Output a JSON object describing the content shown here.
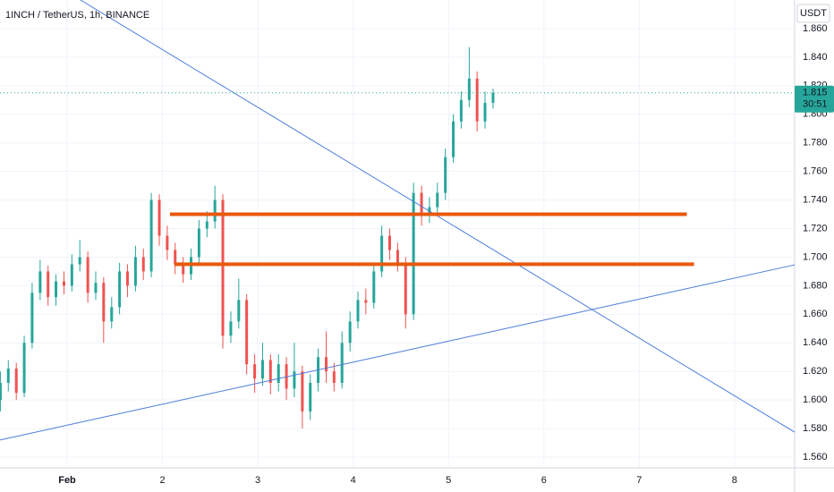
{
  "chart_data": {
    "type": "candlestick",
    "title": "1INCH / TetherUS, 1h, BINANCE",
    "axis_unit": "USDT",
    "up_color": "#26a69a",
    "down_color": "#ef5350",
    "x": [
      0.3,
      0.383,
      0.467,
      0.55,
      0.633,
      0.717,
      0.8,
      0.883,
      0.967,
      1.05,
      1.133,
      1.217,
      1.3,
      1.383,
      1.467,
      1.55,
      1.633,
      1.717,
      1.8,
      1.883,
      1.967,
      2.05,
      2.133,
      2.217,
      2.3,
      2.383,
      2.467,
      2.55,
      2.633,
      2.717,
      2.8,
      2.883,
      2.967,
      3.05,
      3.133,
      3.217,
      3.3,
      3.383,
      3.467,
      3.55,
      3.633,
      3.717,
      3.8,
      3.883,
      3.967,
      4.05,
      4.133,
      4.217,
      4.3,
      4.383,
      4.467,
      4.55,
      4.633,
      4.717,
      4.8,
      4.883,
      4.967,
      5.05,
      5.133,
      5.217,
      5.3,
      5.383,
      5.467
    ],
    "open": [
      1.6,
      1.612,
      1.622,
      1.605,
      1.64,
      1.675,
      1.69,
      1.672,
      1.683,
      1.68,
      1.695,
      1.7,
      1.675,
      1.682,
      1.655,
      1.665,
      1.69,
      1.68,
      1.7,
      1.69,
      1.74,
      1.715,
      1.705,
      1.695,
      1.688,
      1.7,
      1.72,
      1.725,
      1.74,
      1.645,
      1.655,
      1.67,
      1.625,
      1.615,
      1.628,
      1.612,
      1.625,
      1.608,
      1.62,
      1.592,
      1.612,
      1.63,
      1.62,
      1.612,
      1.64,
      1.655,
      1.67,
      1.668,
      1.69,
      1.715,
      1.705,
      1.695,
      1.66,
      1.745,
      1.73,
      1.735,
      1.745,
      1.77,
      1.795,
      1.81,
      1.825,
      1.795,
      1.808
    ],
    "high": [
      1.62,
      1.628,
      1.626,
      1.645,
      1.682,
      1.698,
      1.694,
      1.688,
      1.69,
      1.702,
      1.712,
      1.704,
      1.69,
      1.686,
      1.672,
      1.696,
      1.695,
      1.708,
      1.706,
      1.745,
      1.744,
      1.722,
      1.71,
      1.7,
      1.706,
      1.726,
      1.732,
      1.75,
      1.744,
      1.662,
      1.685,
      1.674,
      1.632,
      1.64,
      1.632,
      1.632,
      1.63,
      1.64,
      1.624,
      1.618,
      1.636,
      1.648,
      1.626,
      1.648,
      1.662,
      1.676,
      1.678,
      1.696,
      1.722,
      1.72,
      1.71,
      1.7,
      1.752,
      1.75,
      1.742,
      1.752,
      1.776,
      1.8,
      1.816,
      1.847,
      1.83,
      1.816,
      1.818
    ],
    "low": [
      1.592,
      1.606,
      1.6,
      1.602,
      1.636,
      1.67,
      1.666,
      1.666,
      1.674,
      1.676,
      1.69,
      1.668,
      1.67,
      1.64,
      1.65,
      1.66,
      1.672,
      1.676,
      1.684,
      1.686,
      1.708,
      1.698,
      1.688,
      1.682,
      1.684,
      1.696,
      1.714,
      1.72,
      1.636,
      1.64,
      1.65,
      1.618,
      1.605,
      1.61,
      1.604,
      1.606,
      1.6,
      1.602,
      1.58,
      1.586,
      1.606,
      1.612,
      1.606,
      1.608,
      1.634,
      1.65,
      1.66,
      1.664,
      1.686,
      1.698,
      1.69,
      1.65,
      1.656,
      1.722,
      1.724,
      1.73,
      1.74,
      1.766,
      1.79,
      1.805,
      1.788,
      1.79,
      1.804
    ],
    "close": [
      1.612,
      1.622,
      1.605,
      1.64,
      1.675,
      1.69,
      1.672,
      1.683,
      1.68,
      1.695,
      1.7,
      1.675,
      1.682,
      1.655,
      1.665,
      1.69,
      1.68,
      1.7,
      1.69,
      1.74,
      1.715,
      1.705,
      1.695,
      1.688,
      1.7,
      1.72,
      1.725,
      1.74,
      1.645,
      1.655,
      1.67,
      1.625,
      1.615,
      1.628,
      1.612,
      1.625,
      1.608,
      1.62,
      1.592,
      1.612,
      1.63,
      1.62,
      1.612,
      1.64,
      1.655,
      1.67,
      1.668,
      1.69,
      1.715,
      1.705,
      1.695,
      1.66,
      1.745,
      1.73,
      1.735,
      1.745,
      1.77,
      1.795,
      1.81,
      1.825,
      1.795,
      1.808,
      1.815
    ],
    "xlim": [
      0.296,
      8.63
    ],
    "ylim": [
      1.5525,
      1.88
    ],
    "xticks": [
      {
        "value": 1,
        "label": "Feb"
      },
      2,
      3,
      4,
      5,
      6,
      7,
      8
    ],
    "yticks": [
      {
        "value": 1.56,
        "label": "1.560"
      },
      {
        "value": 1.58,
        "label": "1.580"
      },
      {
        "value": 1.6,
        "label": "1.600"
      },
      {
        "value": 1.62,
        "label": "1.620"
      },
      {
        "value": 1.64,
        "label": "1.640"
      },
      {
        "value": 1.66,
        "label": "1.660"
      },
      {
        "value": 1.68,
        "label": "1.680"
      },
      {
        "value": 1.7,
        "label": "1.700"
      },
      {
        "value": 1.72,
        "label": "1.720"
      },
      {
        "value": 1.74,
        "label": "1.740"
      },
      {
        "value": 1.76,
        "label": "1.760"
      },
      {
        "value": 1.78,
        "label": "1.780"
      },
      {
        "value": 1.8,
        "label": "1.800"
      },
      {
        "value": 1.82,
        "label": "1.820"
      },
      {
        "value": 1.84,
        "label": "1.840"
      },
      {
        "value": 1.86,
        "label": "1.860"
      }
    ],
    "drawings": [
      {
        "color": "#4a7bd8",
        "width": 1,
        "x": [
          1.14,
          8.63
        ],
        "y": [
          1.88,
          1.5775
        ]
      },
      {
        "color": "#4a7bd8",
        "width": 1,
        "x": [
          0.296,
          8.63
        ],
        "y": [
          1.572,
          1.6946
        ]
      },
      {
        "color": "#e8590c",
        "width": 4,
        "x": [
          2.078,
          7.5
        ],
        "y": [
          1.73,
          1.73
        ]
      },
      {
        "color": "#e8590c",
        "width": 4,
        "x": [
          2.125,
          7.575
        ],
        "y": [
          1.695,
          1.695
        ]
      }
    ],
    "last_price": 1.815,
    "countdown": "30:51"
  }
}
